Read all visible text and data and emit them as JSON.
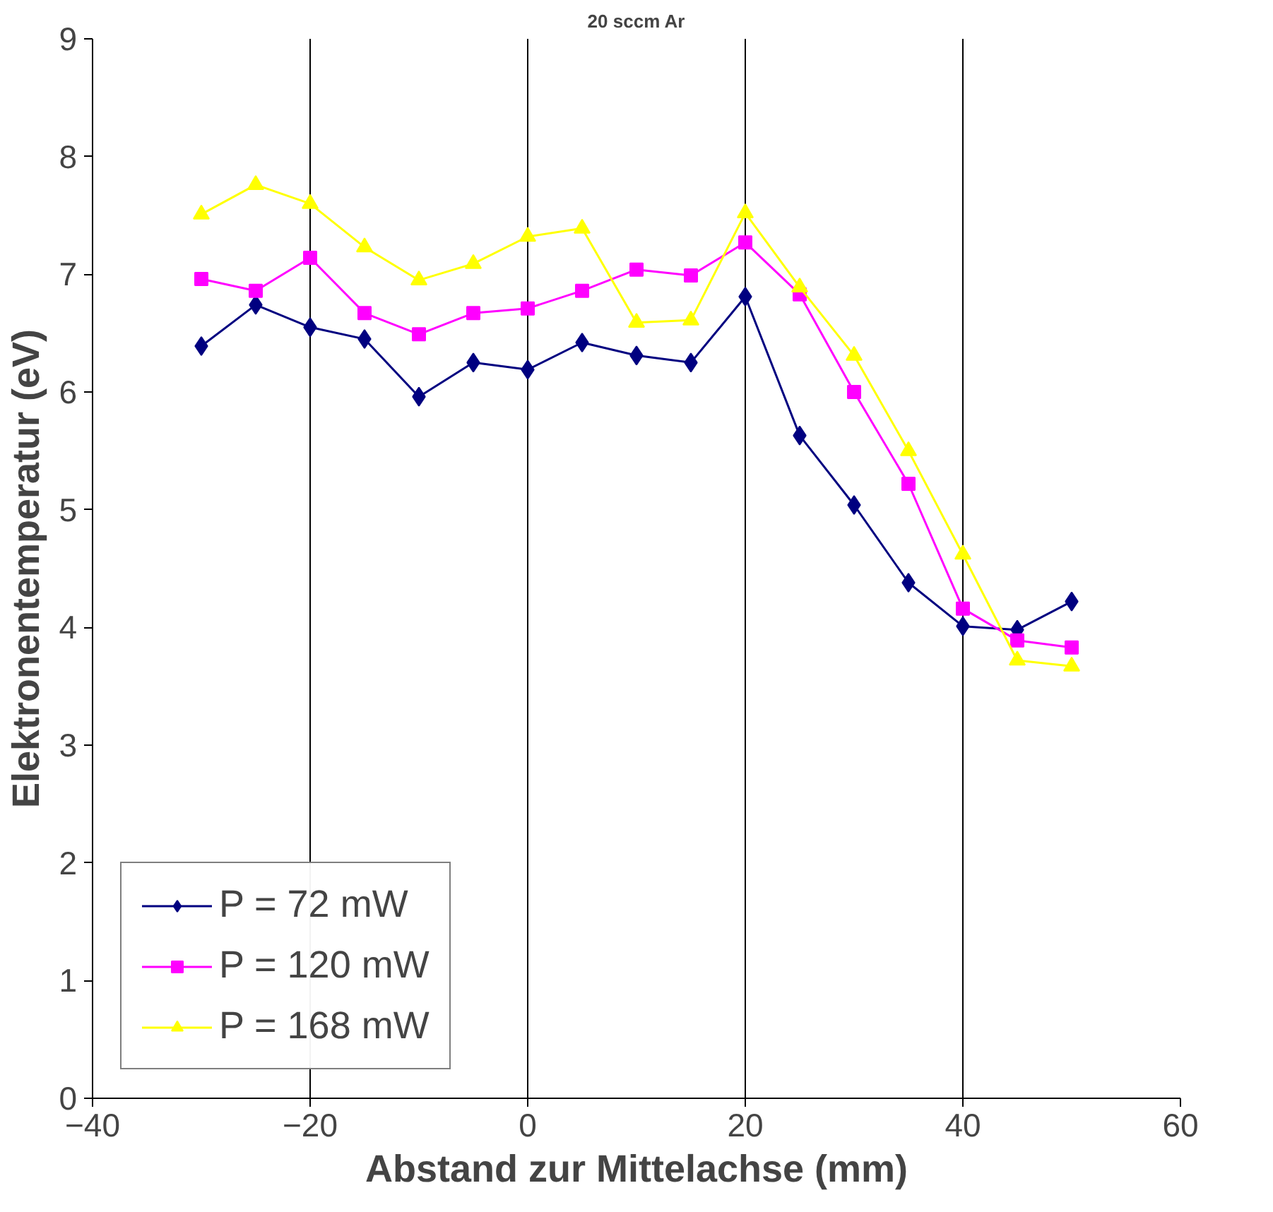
{
  "chart_data": {
    "type": "line",
    "title": "20 sccm Ar",
    "xlabel": "Abstand zur Mittelachse (mm)",
    "ylabel": "Elektronentemperatur (eV)",
    "x": [
      -30,
      -25,
      -20,
      -15,
      -10,
      -5,
      0,
      5,
      10,
      15,
      20,
      25,
      30,
      35,
      40,
      45,
      50
    ],
    "series": [
      {
        "name": "P = 72 mW",
        "color": "#000080",
        "marker": "diamond",
        "values": [
          6.39,
          6.74,
          6.55,
          6.45,
          5.96,
          6.25,
          6.19,
          6.42,
          6.31,
          6.25,
          6.81,
          5.63,
          5.04,
          4.38,
          4.01,
          3.98,
          4.22
        ]
      },
      {
        "name": "P = 120 mW",
        "color": "#ff00ff",
        "marker": "square",
        "values": [
          6.96,
          6.86,
          7.14,
          6.67,
          6.49,
          6.67,
          6.71,
          6.86,
          7.04,
          6.99,
          7.27,
          6.83,
          6.0,
          5.22,
          4.16,
          3.89,
          3.83
        ]
      },
      {
        "name": "P = 168 mW",
        "color": "#ffff00",
        "marker": "triangle",
        "values": [
          7.51,
          7.76,
          7.6,
          7.23,
          6.95,
          7.09,
          7.32,
          7.39,
          6.59,
          6.61,
          7.52,
          6.89,
          6.31,
          5.5,
          4.62,
          3.72,
          3.67
        ]
      }
    ],
    "xlim": [
      -40,
      60
    ],
    "xticks": [
      -40,
      -20,
      0,
      20,
      40,
      60
    ],
    "ylim": [
      0,
      9
    ],
    "yticks": [
      0,
      1,
      2,
      3,
      4,
      5,
      6,
      7,
      8,
      9
    ],
    "grid": "x",
    "legend": "bottom left",
    "line_style": "solid"
  }
}
